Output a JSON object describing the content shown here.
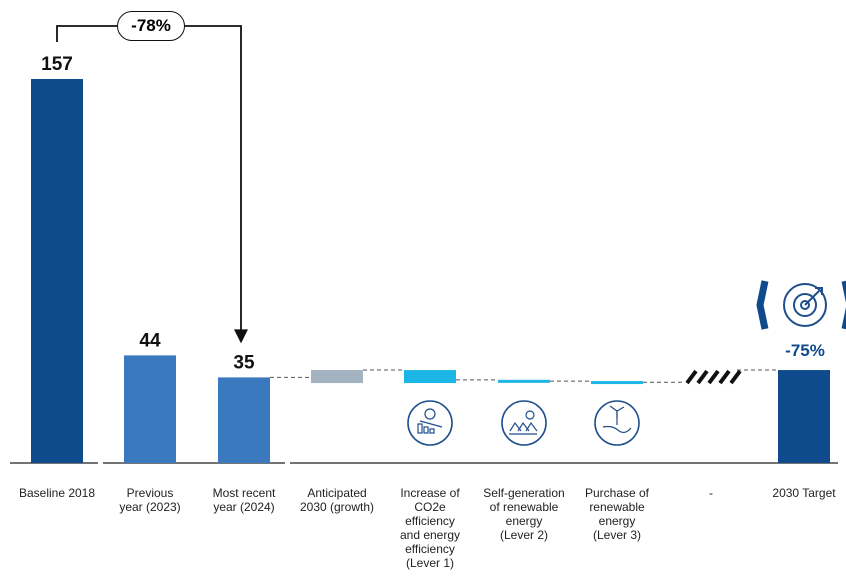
{
  "chart_data": {
    "type": "bar",
    "categories": [
      "Baseline 2018",
      "Previous\nyear (2023)",
      "Most recent\nyear (2024)",
      "Anticipated\n2030 (growth)",
      "Increase of\nCO2e\nefficiency\nand energy\nefficiency\n(Lever 1)",
      "Self-generation\nof renewable\nenergy\n(Lever 2)",
      "Purchase of\nrenewable\nenergy\n(Lever 3)",
      "-",
      "2030 Target"
    ],
    "values": [
      157,
      44,
      35,
      null,
      null,
      null,
      null,
      null,
      null
    ],
    "value_labels": [
      "157",
      "44",
      "35",
      "",
      "",
      "",
      "",
      "",
      ""
    ],
    "waterfall_steps": [
      {
        "index": 3,
        "from": 35,
        "to": 38
      },
      {
        "index": 4,
        "from": 38,
        "to": 34
      },
      {
        "index": 5,
        "from": 34,
        "to": 33.5
      },
      {
        "index": 6,
        "from": 33.5,
        "to": 33
      },
      {
        "index": 7,
        "from": 33,
        "to": 38
      },
      {
        "index": 8,
        "from": 0,
        "to": 38
      }
    ],
    "change_annotation": "-78%",
    "target_annotation": "-75%",
    "ylim": [
      0,
      157
    ],
    "grid": false,
    "colors": {
      "baseline": "#0e4a8c",
      "actual": "#3a79bd",
      "growth": "#a3b3c2",
      "lever": "#1bb5e6",
      "target": "#0e4a8c",
      "icon": "#1f4e8c"
    },
    "lever_icons": [
      "efficiency-chart-icon",
      "solar-panel-icon",
      "wind-turbine-hand-icon"
    ],
    "target_icon": "target-icon"
  }
}
